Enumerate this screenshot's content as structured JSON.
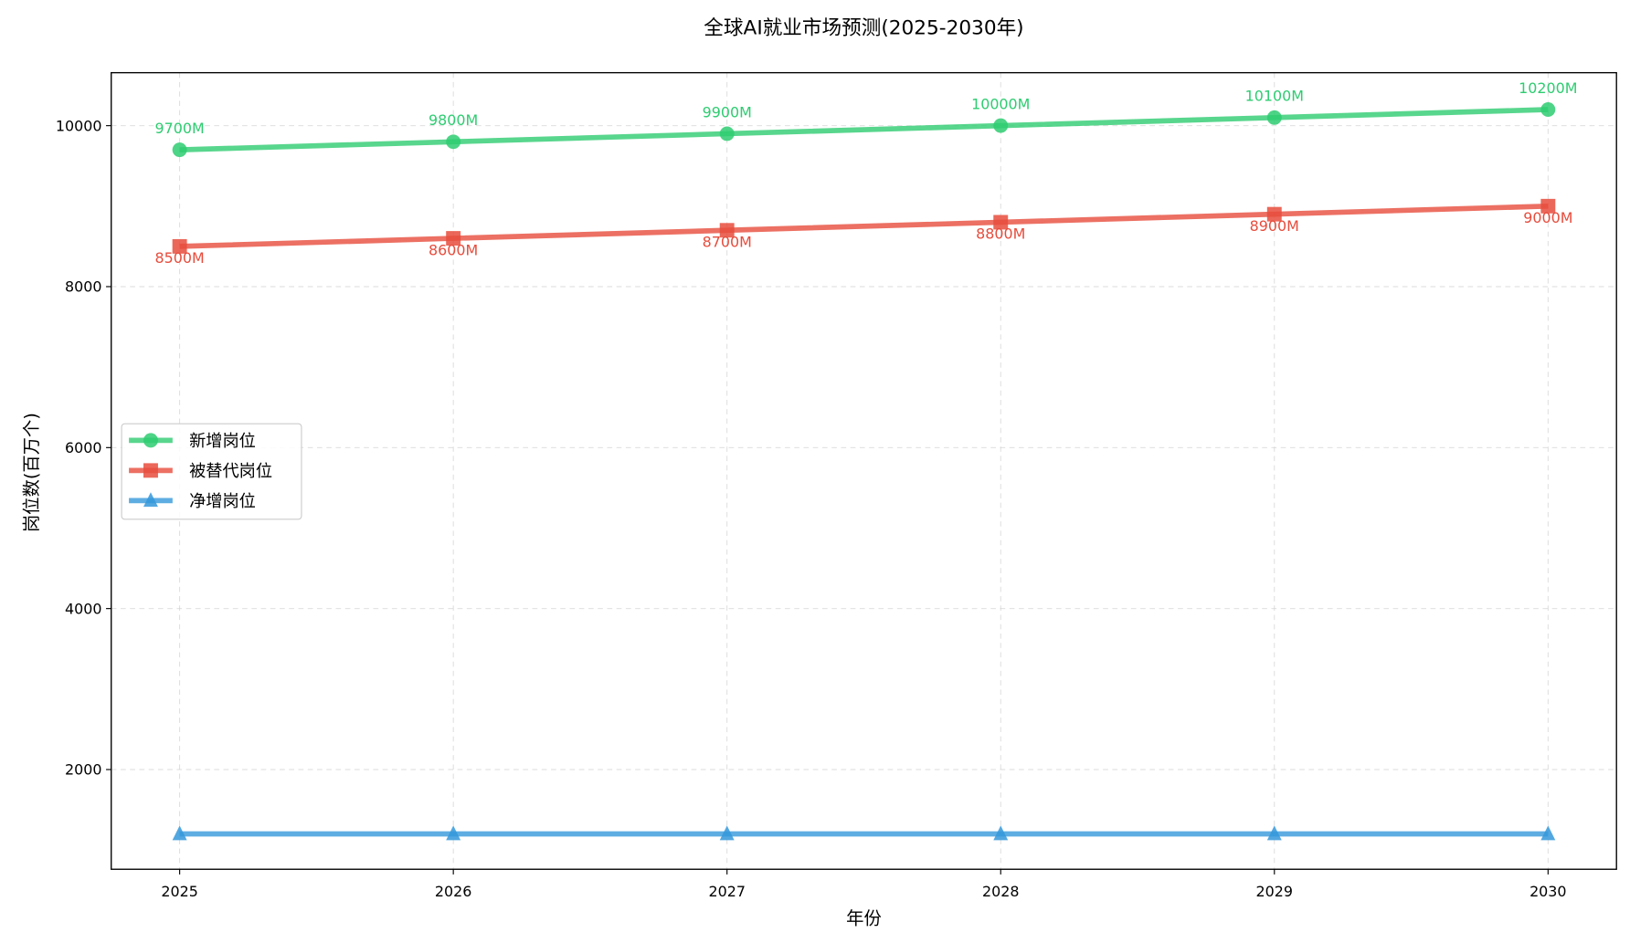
{
  "chart_data": {
    "type": "line",
    "title": "全球AI就业市场预测(2025-2030年)",
    "xlabel": "年份",
    "ylabel": "岗位数(百万个)",
    "x": [
      2025,
      2026,
      2027,
      2028,
      2029,
      2030
    ],
    "x_tick_labels": [
      "2025",
      "2026",
      "2027",
      "2028",
      "2029",
      "2030"
    ],
    "y_ticks": [
      2000,
      4000,
      6000,
      8000,
      10000
    ],
    "y_tick_labels": [
      "2000",
      "4000",
      "6000",
      "8000",
      "10000"
    ],
    "xlim": [
      2024.75,
      2030.25
    ],
    "ylim": [
      761,
      10658
    ],
    "grid": true,
    "legend_position": "center-left",
    "series": [
      {
        "name": "新增岗位",
        "color": "#2ecc71",
        "marker": "circle",
        "values": [
          9700,
          9800,
          9900,
          10000,
          10100,
          10200
        ],
        "data_labels": [
          "9700M",
          "9800M",
          "9900M",
          "10000M",
          "10100M",
          "10200M"
        ],
        "label_position": "above"
      },
      {
        "name": "被替代岗位",
        "color": "#e74c3c",
        "marker": "square",
        "values": [
          8500,
          8600,
          8700,
          8800,
          8900,
          9000
        ],
        "data_labels": [
          "8500M",
          "8600M",
          "8700M",
          "8800M",
          "8900M",
          "9000M"
        ],
        "label_position": "below"
      },
      {
        "name": "净增岗位",
        "color": "#3498db",
        "marker": "triangle",
        "values": [
          1200,
          1200,
          1200,
          1200,
          1200,
          1200
        ],
        "data_labels": [],
        "label_position": "none"
      }
    ]
  }
}
